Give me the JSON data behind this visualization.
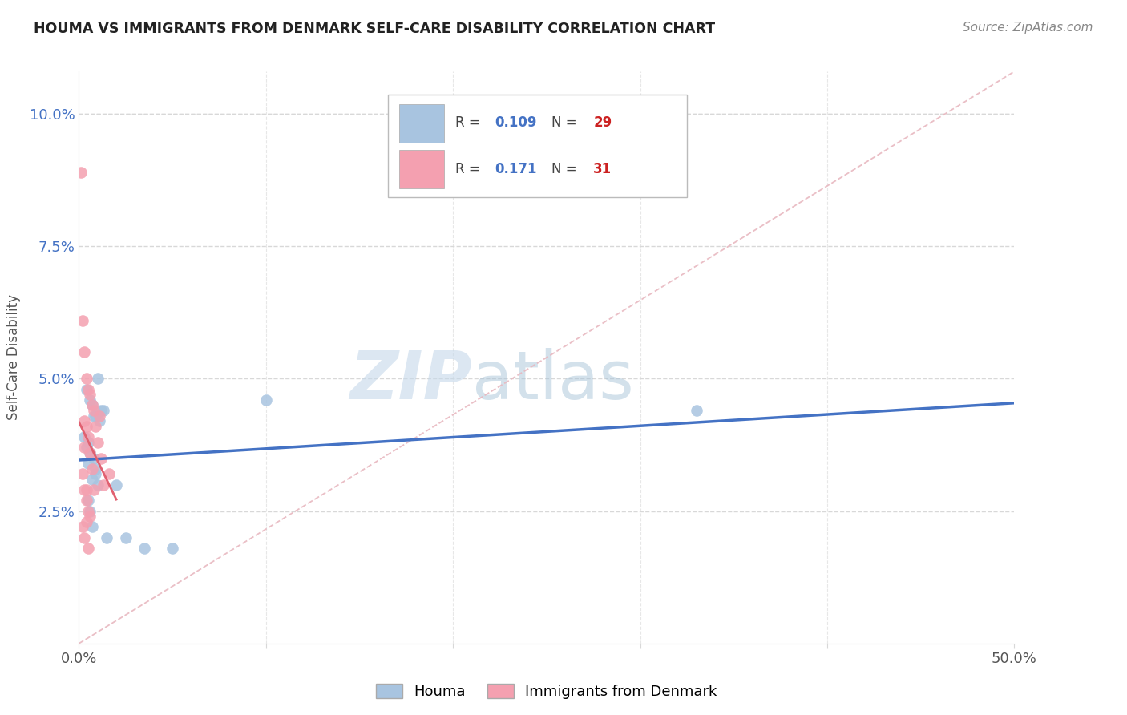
{
  "title": "HOUMA VS IMMIGRANTS FROM DENMARK SELF-CARE DISABILITY CORRELATION CHART",
  "source": "Source: ZipAtlas.com",
  "ylabel": "Self-Care Disability",
  "ytick_vals": [
    2.5,
    5.0,
    7.5,
    10.0
  ],
  "xlim": [
    0.0,
    50.0
  ],
  "ylim": [
    0.0,
    10.8
  ],
  "legend_R_houma": "0.109",
  "legend_N_houma": "29",
  "legend_R_denmark": "0.171",
  "legend_N_denmark": "31",
  "color_houma": "#a8c4e0",
  "color_denmark": "#f4a0b0",
  "color_houma_line": "#4472c4",
  "color_denmark_line": "#e06070",
  "color_diagonal": "#e8b8c0",
  "watermark_ZIP": "ZIP",
  "watermark_atlas": "atlas",
  "background_color": "#ffffff",
  "grid_color": "#d8d8d8",
  "houma_x": [
    0.4,
    0.6,
    0.7,
    0.8,
    0.9,
    1.0,
    1.1,
    1.2,
    0.5,
    0.6,
    0.8,
    0.9,
    1.0,
    0.3,
    0.4,
    0.5,
    0.7,
    1.3,
    5.0,
    2.0,
    10.0,
    33.0,
    0.5,
    0.6,
    0.7,
    0.9,
    1.5,
    2.5,
    3.5
  ],
  "houma_y": [
    4.8,
    4.6,
    4.5,
    4.3,
    4.3,
    5.0,
    4.2,
    4.4,
    3.8,
    3.6,
    3.5,
    3.3,
    3.0,
    3.9,
    3.7,
    3.4,
    3.1,
    4.4,
    1.8,
    3.0,
    4.6,
    4.4,
    2.7,
    2.5,
    2.2,
    3.2,
    2.0,
    2.0,
    1.8
  ],
  "denmark_x": [
    0.1,
    0.2,
    0.3,
    0.4,
    0.5,
    0.6,
    0.7,
    0.8,
    0.9,
    1.0,
    1.1,
    1.2,
    1.3,
    0.2,
    0.3,
    0.4,
    0.5,
    0.6,
    0.7,
    0.3,
    0.4,
    0.5,
    0.2,
    0.3,
    0.4,
    0.5,
    0.6,
    0.8,
    0.3,
    0.4,
    1.6
  ],
  "denmark_y": [
    8.9,
    6.1,
    5.5,
    5.0,
    4.8,
    4.7,
    4.5,
    4.4,
    4.1,
    3.8,
    4.3,
    3.5,
    3.0,
    3.2,
    2.9,
    2.7,
    2.5,
    2.4,
    3.3,
    4.2,
    4.1,
    3.9,
    2.2,
    2.0,
    2.3,
    1.8,
    3.6,
    2.9,
    3.7,
    2.9,
    3.2
  ]
}
